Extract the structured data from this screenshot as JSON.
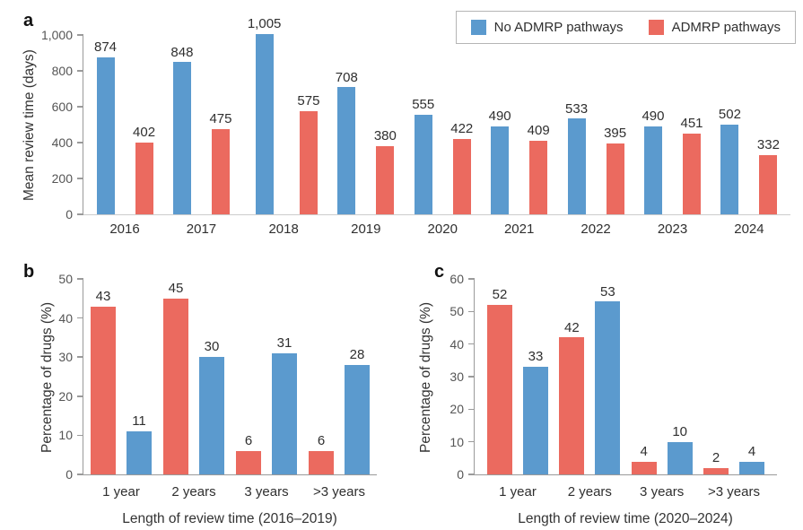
{
  "panels": {
    "a": {
      "letter": "a"
    },
    "b": {
      "letter": "b"
    },
    "c": {
      "letter": "c"
    }
  },
  "colors": {
    "no_admrp_blue": "#5b9ace",
    "admrp_red": "#eb6a5f",
    "axis_line": "#9a9a9a",
    "tick_text": "#555555",
    "label_text": "#2f2f2f"
  },
  "legend": {
    "position": "top-right",
    "items": [
      {
        "label": "No ADMRP pathways",
        "color": "#5b9ace"
      },
      {
        "label": "ADMRP pathways",
        "color": "#eb6a5f"
      }
    ]
  },
  "chart_data": [
    {
      "id": "a",
      "type": "bar",
      "panel": "a",
      "title": "",
      "xlabel": "",
      "ylabel": "Mean review time (days)",
      "ylim": [
        0,
        1000
      ],
      "grid": false,
      "legend_position": "top-right",
      "yticks": [
        {
          "value": 0,
          "label": "0"
        },
        {
          "value": 200,
          "label": "200"
        },
        {
          "value": 400,
          "label": "400"
        },
        {
          "value": 600,
          "label": "600"
        },
        {
          "value": 800,
          "label": "800"
        },
        {
          "value": 1000,
          "label": "1,000"
        }
      ],
      "categories": [
        "2016",
        "2017",
        "2018",
        "2019",
        "2020",
        "2021",
        "2022",
        "2023",
        "2024"
      ],
      "series": [
        {
          "name": "No ADMRP pathways",
          "color": "#5b9ace",
          "values": [
            874,
            848,
            1005,
            708,
            555,
            490,
            533,
            490,
            502
          ],
          "labels": [
            "874",
            "848",
            "1,005",
            "708",
            "555",
            "490",
            "533",
            "490",
            "502"
          ]
        },
        {
          "name": "ADMRP pathways",
          "color": "#eb6a5f",
          "values": [
            402,
            475,
            575,
            380,
            422,
            409,
            395,
            451,
            332
          ],
          "labels": [
            "402",
            "475",
            "575",
            "380",
            "422",
            "409",
            "395",
            "451",
            "332"
          ]
        }
      ]
    },
    {
      "id": "b",
      "type": "bar",
      "panel": "b",
      "title": "",
      "xlabel": "Length of review time (2016–2019)",
      "ylabel": "Percentage of drugs (%)",
      "ylim": [
        0,
        50
      ],
      "grid": false,
      "yticks": [
        {
          "value": 0,
          "label": "0"
        },
        {
          "value": 10,
          "label": "10"
        },
        {
          "value": 20,
          "label": "20"
        },
        {
          "value": 30,
          "label": "30"
        },
        {
          "value": 40,
          "label": "40"
        },
        {
          "value": 50,
          "label": "50"
        }
      ],
      "categories": [
        "1 year",
        "2 years",
        "3 years",
        ">3 years"
      ],
      "series": [
        {
          "name": "ADMRP pathways",
          "color": "#eb6a5f",
          "values": [
            43,
            45,
            6,
            6
          ],
          "labels": [
            "43",
            "45",
            "6",
            "6"
          ]
        },
        {
          "name": "No ADMRP pathways",
          "color": "#5b9ace",
          "values": [
            11,
            30,
            31,
            28
          ],
          "labels": [
            "11",
            "30",
            "31",
            "28"
          ]
        }
      ]
    },
    {
      "id": "c",
      "type": "bar",
      "panel": "c",
      "title": "",
      "xlabel": "Length of review time (2020–2024)",
      "ylabel": "Percentage of drugs (%)",
      "ylim": [
        0,
        60
      ],
      "grid": false,
      "yticks": [
        {
          "value": 0,
          "label": "0"
        },
        {
          "value": 10,
          "label": "10"
        },
        {
          "value": 20,
          "label": "20"
        },
        {
          "value": 30,
          "label": "30"
        },
        {
          "value": 40,
          "label": "40"
        },
        {
          "value": 50,
          "label": "50"
        },
        {
          "value": 60,
          "label": "60"
        }
      ],
      "categories": [
        "1 year",
        "2 years",
        "3 years",
        ">3 years"
      ],
      "series": [
        {
          "name": "ADMRP pathways",
          "color": "#eb6a5f",
          "values": [
            52,
            42,
            4,
            2
          ],
          "labels": [
            "52",
            "42",
            "4",
            "2"
          ]
        },
        {
          "name": "No ADMRP pathways",
          "color": "#5b9ace",
          "values": [
            33,
            53,
            10,
            4
          ],
          "labels": [
            "33",
            "53",
            "10",
            "4"
          ]
        }
      ]
    }
  ]
}
